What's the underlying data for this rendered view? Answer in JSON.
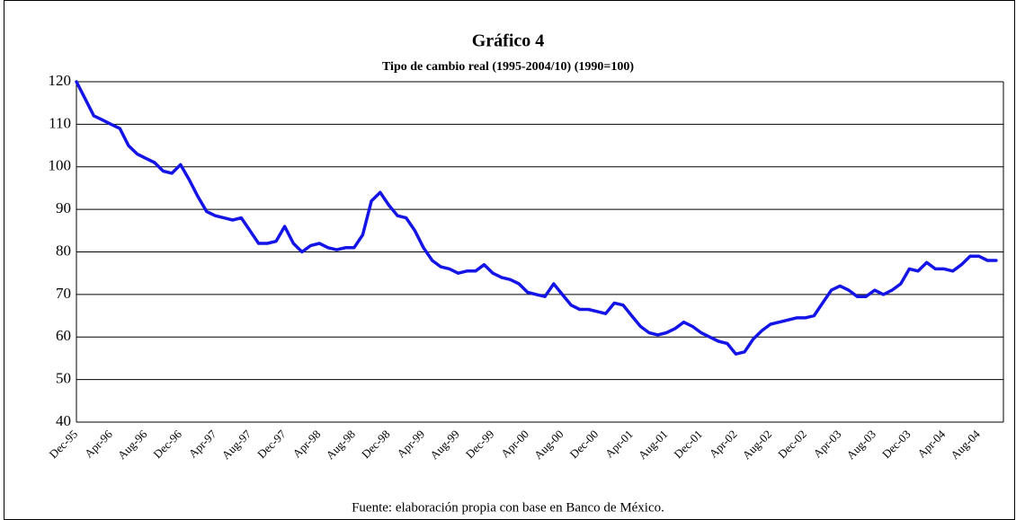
{
  "chart_data": {
    "type": "line",
    "title": "Gráfico 4",
    "subtitle": "Tipo de cambio real (1995-2004/10) (1990=100)",
    "source": "Fuente: elaboración propia con base en Banco de México.",
    "categories": [
      "Dec-95",
      null,
      null,
      null,
      "Apr-96",
      null,
      null,
      null,
      "Aug-96",
      null,
      null,
      null,
      "Dec-96",
      null,
      null,
      null,
      "Apr-97",
      null,
      null,
      null,
      "Aug-97",
      null,
      null,
      null,
      "Dec-97",
      null,
      null,
      null,
      "Apr-98",
      null,
      null,
      null,
      "Aug-98",
      null,
      null,
      null,
      "Dec-98",
      null,
      null,
      null,
      "Apr-99",
      null,
      null,
      null,
      "Aug-99",
      null,
      null,
      null,
      "Dec-99",
      null,
      null,
      null,
      "Apr-00",
      null,
      null,
      null,
      "Aug-00",
      null,
      null,
      null,
      "Dec-00",
      null,
      null,
      null,
      "Apr-01",
      null,
      null,
      null,
      "Aug-01",
      null,
      null,
      null,
      "Dec-01",
      null,
      null,
      null,
      "Apr-02",
      null,
      null,
      null,
      "Aug-02",
      null,
      null,
      null,
      "Dec-02",
      null,
      null,
      null,
      "Apr-03",
      null,
      null,
      null,
      "Aug-03",
      null,
      null,
      null,
      "Dec-03",
      null,
      null,
      null,
      "Apr-04",
      null,
      null,
      null,
      "Aug-04",
      null,
      null
    ],
    "values": [
      120,
      116,
      112,
      111,
      110,
      109,
      105,
      103,
      102,
      101,
      99,
      98.5,
      100.5,
      97,
      93,
      89.5,
      88.5,
      88,
      87.5,
      88,
      85,
      82,
      82,
      82.5,
      86,
      82,
      80,
      81.5,
      82,
      81,
      80.5,
      81,
      81,
      84,
      92,
      94,
      91,
      88.5,
      88,
      85,
      81,
      78,
      76.5,
      76,
      75,
      75.5,
      75.5,
      77,
      75,
      74,
      73.5,
      72.5,
      70.5,
      70,
      69.5,
      72.5,
      70,
      67.5,
      66.5,
      66.5,
      66,
      65.5,
      68,
      67.5,
      65,
      62.5,
      61,
      60.5,
      61,
      62,
      63.5,
      62.5,
      61,
      60,
      59,
      58.5,
      56,
      56.5,
      59.5,
      61.5,
      63,
      63.5,
      64,
      64.5,
      64.5,
      65,
      68,
      71,
      72,
      71,
      69.5,
      69.5,
      71,
      70,
      71,
      72.5,
      76,
      75.5,
      77.5,
      76,
      76,
      75.5,
      77,
      79,
      79,
      78,
      78
    ],
    "color": "#1414e6",
    "ylim": [
      40,
      120
    ],
    "yticks": [
      40,
      50,
      60,
      70,
      80,
      90,
      100,
      110,
      120
    ],
    "grid": true
  }
}
